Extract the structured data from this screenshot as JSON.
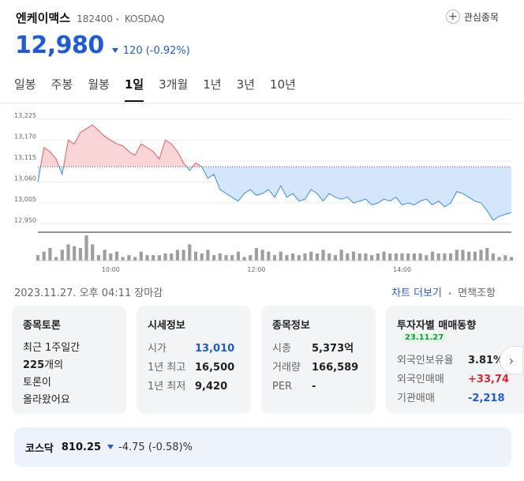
{
  "stock": {
    "name": "엔케이맥스",
    "code": "182400",
    "market": "KOSDAQ",
    "price": "12,980",
    "change": "120 (-0.92%)",
    "watch_label": "관심종목"
  },
  "tabs": [
    "일봉",
    "주봉",
    "월봉",
    "1일",
    "3개월",
    "1년",
    "3년",
    "10년"
  ],
  "active_tab": "1일",
  "chart_data": {
    "type": "area",
    "title": "",
    "xlabel": "",
    "ylabel": "",
    "x_ticks": [
      "10:00",
      "12:00",
      "14:00"
    ],
    "y_ticks": [
      13225,
      13170,
      13115,
      13060,
      13005,
      12950
    ],
    "ylim": [
      12945,
      13235
    ],
    "base_price": 13100,
    "times": [
      "09:00",
      "09:05",
      "09:10",
      "09:15",
      "09:20",
      "09:25",
      "09:30",
      "09:35",
      "09:40",
      "09:45",
      "09:50",
      "09:55",
      "10:00",
      "10:05",
      "10:10",
      "10:15",
      "10:20",
      "10:25",
      "10:30",
      "10:35",
      "10:40",
      "10:45",
      "10:50",
      "10:55",
      "11:00",
      "11:05",
      "11:10",
      "11:15",
      "11:20",
      "11:25",
      "11:30",
      "11:35",
      "11:40",
      "11:45",
      "11:50",
      "11:55",
      "12:00",
      "12:05",
      "12:10",
      "12:15",
      "12:20",
      "12:25",
      "12:30",
      "12:35",
      "12:40",
      "12:45",
      "12:50",
      "12:55",
      "13:00",
      "13:05",
      "13:10",
      "13:15",
      "13:20",
      "13:25",
      "13:30",
      "13:35",
      "13:40",
      "13:45",
      "13:50",
      "13:55",
      "14:00",
      "14:05",
      "14:10",
      "14:15",
      "14:20",
      "14:25",
      "14:30",
      "14:35",
      "14:40",
      "14:45",
      "14:50",
      "14:55",
      "15:00",
      "15:05",
      "15:10",
      "15:15",
      "15:20",
      "15:25",
      "15:30"
    ],
    "prices": [
      13060,
      13150,
      13140,
      13120,
      13080,
      13170,
      13160,
      13190,
      13200,
      13210,
      13195,
      13180,
      13170,
      13160,
      13155,
      13140,
      13130,
      13160,
      13150,
      13140,
      13120,
      13170,
      13160,
      13140,
      13110,
      13090,
      13110,
      13100,
      13070,
      13080,
      13040,
      13030,
      13020,
      13010,
      13030,
      13040,
      13025,
      13030,
      13040,
      13020,
      13050,
      13020,
      13030,
      13010,
      13015,
      13040,
      13030,
      13010,
      13030,
      13020,
      13015,
      13020,
      13005,
      13010,
      13015,
      13000,
      13005,
      13015,
      13010,
      13020,
      13000,
      13005,
      13000,
      13010,
      13015,
      13000,
      13010,
      12995,
      13005,
      13035,
      13030,
      13020,
      13010,
      13005,
      12985,
      12960,
      12970,
      12975,
      12980
    ],
    "volumes": [
      3,
      5,
      7,
      2,
      6,
      9,
      8,
      7,
      14,
      9,
      3,
      6,
      4,
      5,
      2,
      3,
      2,
      5,
      3,
      3,
      3,
      4,
      4,
      6,
      6,
      9,
      5,
      4,
      6,
      3,
      4,
      3,
      3,
      5,
      2,
      3,
      7,
      6,
      5,
      3,
      5,
      3,
      4,
      3,
      4,
      5,
      4,
      6,
      4,
      3,
      6,
      4,
      5,
      4,
      4,
      3,
      4,
      5,
      4,
      4,
      4,
      4,
      4,
      4,
      3,
      5,
      4,
      4,
      4,
      6,
      6,
      5,
      5,
      6,
      7,
      4,
      2,
      3,
      2
    ]
  },
  "info": {
    "timestamp": "2023.11.27. 오후 04:11 장마감",
    "chart_more": "차트 더보기",
    "disclaimer": "면책조항"
  },
  "cards": {
    "discussion": {
      "title": "종목토론",
      "line1": "최근 1주일간",
      "line2_count": "225",
      "line2_suffix": "개의",
      "line3": "토론이",
      "line4": "올라왔어요"
    },
    "market_info": {
      "title": "시세정보",
      "rows": [
        {
          "label": "시가",
          "value": "13,010"
        },
        {
          "label": "1년 최고",
          "value": "16,500"
        },
        {
          "label": "1년 최저",
          "value": "9,420"
        }
      ]
    },
    "stock_info": {
      "title": "종목정보",
      "rows": [
        {
          "label": "시총",
          "value": "5,373억"
        },
        {
          "label": "거래량",
          "value": "166,589"
        },
        {
          "label": "PER",
          "value": "-"
        }
      ]
    },
    "investor": {
      "title": "투자자별 매매동향",
      "date": "23.11.27",
      "rows": [
        {
          "label": "외국인보유율",
          "value": "3.81%"
        },
        {
          "label": "외국인매매",
          "value": "+33,74"
        },
        {
          "label": "기관매매",
          "value": "-2,218"
        }
      ]
    }
  },
  "index": {
    "name": "코스닥",
    "value": "810.25",
    "change": "-4.75 (-0.58)%"
  },
  "colors": {
    "down": "#1f5bd8",
    "up": "#e0262f",
    "up_fill": "#f9d5d7",
    "down_fill": "#d3e6fb",
    "up_line": "#e85a62",
    "down_line": "#3a8ee6"
  },
  "icons": {
    "watch": "plus-circle-icon",
    "next": "chevron-right-icon",
    "trend": "down-triangle-icon"
  }
}
